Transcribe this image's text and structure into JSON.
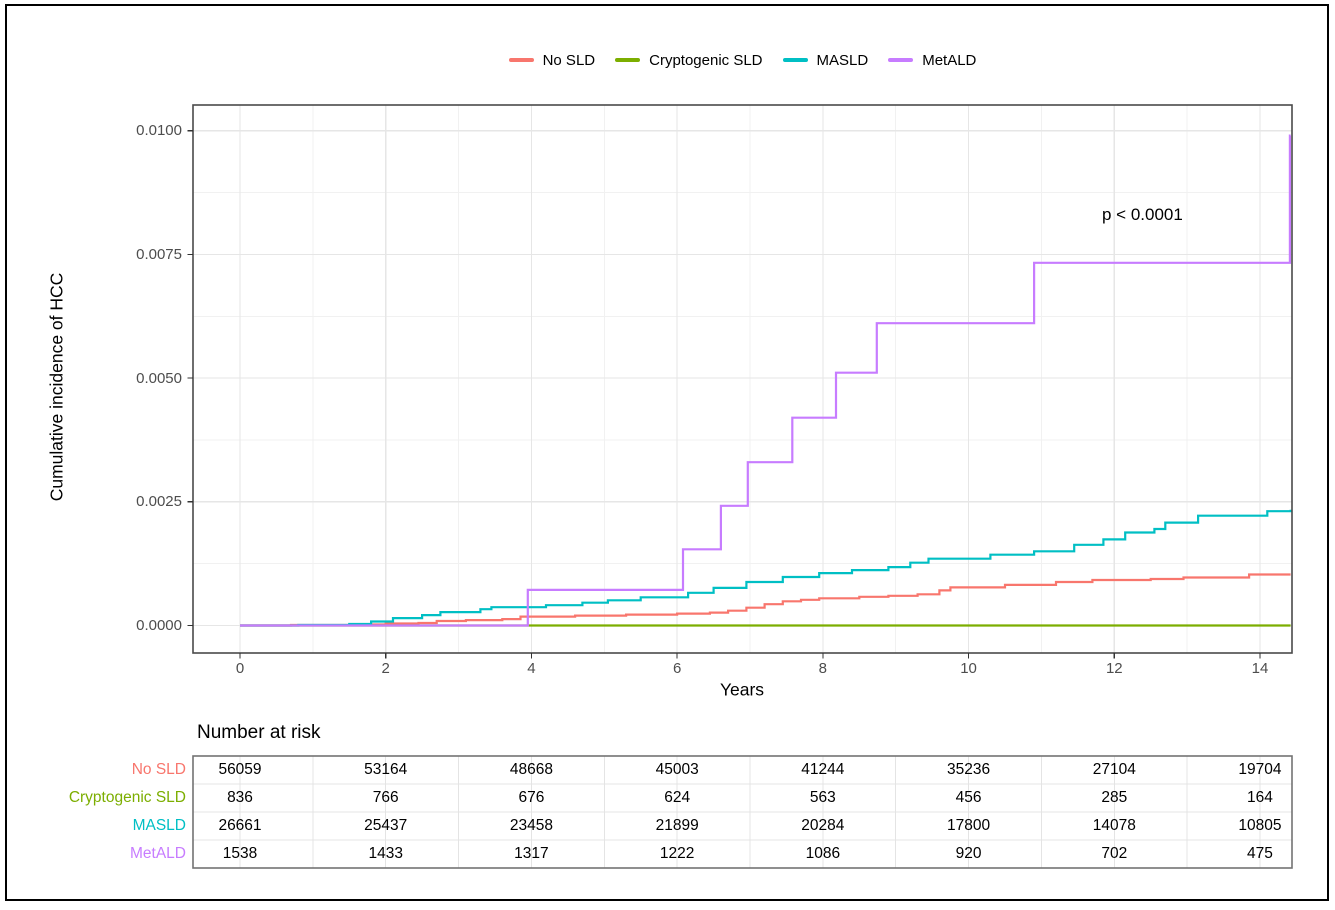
{
  "chart_data": {
    "type": "line",
    "style": "step-cumulative-incidence",
    "title": "",
    "xlabel": "Years",
    "ylabel": "Cumulative incidence of HCC",
    "annotation": "p < 0.0001",
    "xlim": [
      -0.65,
      14.45
    ],
    "ylim": [
      -0.00056,
      0.01052
    ],
    "x_ticks": [
      0,
      2,
      4,
      6,
      8,
      10,
      12,
      14
    ],
    "x_minor_ticks": [
      1,
      3,
      5,
      7,
      9,
      11,
      13
    ],
    "y_ticks": [
      0,
      0.0025,
      0.005,
      0.0075,
      0.01
    ],
    "y_tick_labels": [
      "0.0000",
      "0.0025",
      "0.0050",
      "0.0075",
      "0.0100"
    ],
    "y_minor_ticks": [
      0.00125,
      0.00375,
      0.00625,
      0.00875
    ],
    "grid": true,
    "legend_position": "top",
    "series": [
      {
        "name": "No SLD",
        "color": "#F8766D",
        "points": [
          [
            0,
            0
          ],
          [
            0.7,
            1e-05
          ],
          [
            1.5,
            2e-05
          ],
          [
            2.0,
            4e-05
          ],
          [
            2.45,
            5e-05
          ],
          [
            2.7,
            9e-05
          ],
          [
            3.1,
            0.00011
          ],
          [
            3.6,
            0.00013
          ],
          [
            3.85,
            0.00018
          ],
          [
            4.6,
            0.0002
          ],
          [
            5.3,
            0.00022
          ],
          [
            6.0,
            0.00024
          ],
          [
            6.45,
            0.00026
          ],
          [
            6.7,
            0.0003
          ],
          [
            6.95,
            0.00036
          ],
          [
            7.2,
            0.00043
          ],
          [
            7.45,
            0.00049
          ],
          [
            7.7,
            0.00052
          ],
          [
            7.95,
            0.00055
          ],
          [
            8.5,
            0.00058
          ],
          [
            8.9,
            0.0006
          ],
          [
            9.3,
            0.00063
          ],
          [
            9.6,
            0.00071
          ],
          [
            9.75,
            0.00077
          ],
          [
            10.5,
            0.00082
          ],
          [
            11.2,
            0.00088
          ],
          [
            11.7,
            0.00092
          ],
          [
            12.5,
            0.00094
          ],
          [
            12.95,
            0.00097
          ],
          [
            13.85,
            0.00103
          ],
          [
            14.42,
            0.00103
          ]
        ]
      },
      {
        "name": "Cryptogenic SLD",
        "color": "#7CAE00",
        "points": [
          [
            0,
            0
          ],
          [
            14.42,
            0
          ]
        ]
      },
      {
        "name": "MASLD",
        "color": "#00BFC4",
        "points": [
          [
            0,
            0
          ],
          [
            0.8,
            1e-05
          ],
          [
            1.5,
            3e-05
          ],
          [
            1.8,
            8e-05
          ],
          [
            2.1,
            0.00015
          ],
          [
            2.5,
            0.00021
          ],
          [
            2.75,
            0.00027
          ],
          [
            3.3,
            0.00033
          ],
          [
            3.45,
            0.00037
          ],
          [
            4.2,
            0.00041
          ],
          [
            4.7,
            0.00046
          ],
          [
            5.05,
            0.00051
          ],
          [
            5.5,
            0.00057
          ],
          [
            6.15,
            0.00066
          ],
          [
            6.5,
            0.00076
          ],
          [
            6.95,
            0.00088
          ],
          [
            7.45,
            0.00098
          ],
          [
            7.95,
            0.00106
          ],
          [
            8.4,
            0.00112
          ],
          [
            8.9,
            0.00118
          ],
          [
            9.2,
            0.00127
          ],
          [
            9.45,
            0.00135
          ],
          [
            10.3,
            0.00143
          ],
          [
            10.9,
            0.0015
          ],
          [
            11.45,
            0.00163
          ],
          [
            11.85,
            0.00174
          ],
          [
            12.15,
            0.00188
          ],
          [
            12.55,
            0.00195
          ],
          [
            12.7,
            0.00208
          ],
          [
            13.15,
            0.00222
          ],
          [
            14.1,
            0.00231
          ],
          [
            14.42,
            0.00234
          ]
        ]
      },
      {
        "name": "MetALD",
        "color": "#C77CFF",
        "points": [
          [
            0,
            0
          ],
          [
            3.95,
            0.00072
          ],
          [
            6.08,
            0.00154
          ],
          [
            6.6,
            0.00242
          ],
          [
            6.97,
            0.0033
          ],
          [
            7.58,
            0.0042
          ],
          [
            8.18,
            0.00511
          ],
          [
            8.74,
            0.00611
          ],
          [
            10.9,
            0.00733
          ],
          [
            14.41,
            0.0099
          ],
          [
            14.42,
            0.0099
          ]
        ]
      }
    ]
  },
  "risk_table": {
    "title": "Number at risk",
    "times": [
      0,
      2,
      4,
      6,
      8,
      10,
      12,
      14
    ],
    "rows": [
      {
        "label": "No SLD",
        "color": "#F8766D",
        "values": [
          56059,
          53164,
          48668,
          45003,
          41244,
          35236,
          27104,
          19704
        ]
      },
      {
        "label": "Cryptogenic SLD",
        "color": "#7CAE00",
        "values": [
          836,
          766,
          676,
          624,
          563,
          456,
          285,
          164
        ]
      },
      {
        "label": "MASLD",
        "color": "#00BFC4",
        "values": [
          26661,
          25437,
          23458,
          21899,
          20284,
          17800,
          14078,
          10805
        ]
      },
      {
        "label": "MetALD",
        "color": "#C77CFF",
        "values": [
          1538,
          1433,
          1317,
          1222,
          1086,
          920,
          702,
          475
        ]
      }
    ]
  },
  "palette": {
    "no_sld": "#F8766D",
    "cryptogenic_sld": "#7CAE00",
    "masld": "#00BFC4",
    "metald": "#C77CFF",
    "grid_major": "#E6E6E6",
    "grid_minor": "#F1F1F1",
    "panel_border": "#4a4a4a",
    "table_border": "#737373",
    "table_grid": "#E4E4E4",
    "tick_text": "#4d4d4d"
  }
}
